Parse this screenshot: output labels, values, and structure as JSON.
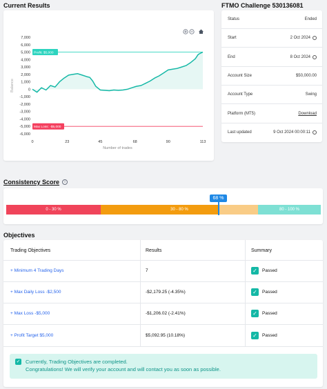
{
  "results": {
    "title": "Current Results",
    "chart_data": {
      "type": "line",
      "ylabel": "Balance",
      "xlabel": "Number of trades",
      "y_ticks": [
        "7,000",
        "6,000",
        "5,000",
        "4,000",
        "3,000",
        "2,000",
        "1,000",
        "0",
        "-1,000",
        "-2,000",
        "-3,000",
        "-4,000",
        "-5,000",
        "-6,000"
      ],
      "x_ticks": [
        "0",
        "23",
        "45",
        "68",
        "90",
        "113"
      ],
      "ylim": [
        -6000,
        7000
      ],
      "xlim": [
        0,
        113
      ],
      "profit_label": "Profit: $5,000",
      "profit_value": 5000,
      "loss_label": "Max Loss: -$5,000",
      "loss_value": -5000,
      "series": [
        {
          "x": [
            0,
            3,
            6,
            9,
            12,
            15,
            18,
            21,
            24,
            27,
            30,
            33,
            36,
            38,
            40,
            42,
            45,
            48,
            51,
            54,
            57,
            60,
            63,
            66,
            69,
            72,
            75,
            78,
            81,
            84,
            87,
            90,
            93,
            96,
            99,
            102,
            105,
            108,
            110,
            113
          ],
          "values": [
            0,
            -400,
            200,
            -100,
            500,
            300,
            1000,
            1500,
            1900,
            2000,
            2100,
            1900,
            1700,
            1600,
            1100,
            400,
            -100,
            -150,
            -200,
            -100,
            -150,
            -100,
            0,
            200,
            400,
            500,
            800,
            1100,
            1500,
            1800,
            2200,
            2600,
            2700,
            2800,
            3000,
            3200,
            3600,
            4100,
            4700,
            5000
          ]
        }
      ]
    }
  },
  "account": {
    "title": "FTMO Challenge 530136081",
    "rows": [
      {
        "key": "Status",
        "value": "Ended",
        "icon": ""
      },
      {
        "key": "Start",
        "value": "2 Oct 2024",
        "icon": "clock-icon"
      },
      {
        "key": "End",
        "value": "8 Oct 2024",
        "icon": "clock-icon"
      },
      {
        "key": "Account Size",
        "value": "$50,000.00",
        "icon": ""
      },
      {
        "key": "Account Type",
        "value": "Swing",
        "icon": ""
      },
      {
        "key": "Platform (MT5)",
        "value": "Download",
        "icon": ""
      },
      {
        "key": "Last updated",
        "value": "9 Oct 2024 00:00:11",
        "icon": "clock-icon"
      }
    ]
  },
  "consistency": {
    "title": "Consistency Score",
    "score_label": "68 %",
    "score": 68,
    "segments": [
      "0 - 30 %",
      "30 - 80 %",
      "80 - 100 %"
    ],
    "colors": {
      "red": "#f0445a",
      "orange": "#f39c0f",
      "light_orange": "#f9cc86",
      "teal": "#7ee0d4",
      "marker": "#1e88e5"
    }
  },
  "objectives": {
    "title": "Objectives",
    "headers": [
      "Trading Objectives",
      "Results",
      "Summary"
    ],
    "rows": [
      {
        "label": "Minimum 4 Trading Days",
        "result": "7",
        "summary": "Passed"
      },
      {
        "label": "Max Daily Loss -$2,500",
        "result": "-$2,179.25 (-4.35%)",
        "summary": "Passed"
      },
      {
        "label": "Max Loss -$5,000",
        "result": "-$1,206.02 (-2.41%)",
        "summary": "Passed"
      },
      {
        "label": "Profit Target $5,000",
        "result": "$5,092.95 (10.18%)",
        "summary": "Passed"
      }
    ],
    "notice_line1": "Currently, Trading Objectives are completed.",
    "notice_line2": "Congratulations! We will verify your account and will contact you as soon as possible."
  }
}
